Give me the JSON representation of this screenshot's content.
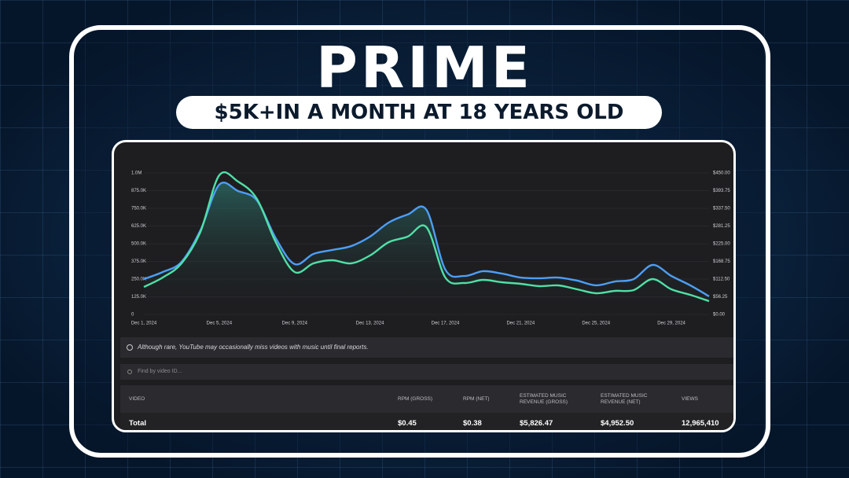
{
  "header": {
    "title": "PRIME",
    "subtitle": "$5K+IN A MONTH AT 18 YEARS OLD"
  },
  "chart_data": {
    "type": "line",
    "categories": [
      "Dec 1, 2024",
      null,
      null,
      null,
      "Dec 5, 2024",
      null,
      null,
      null,
      "Dec 9, 2024",
      null,
      null,
      null,
      "Dec 13, 2024",
      null,
      null,
      null,
      "Dec 17, 2024",
      null,
      null,
      null,
      "Dec 21, 2024",
      null,
      null,
      null,
      "Dec 25, 2024",
      null,
      null,
      null,
      "Dec 29, 2024",
      null,
      null
    ],
    "series": [
      {
        "color": "#4d9ef5",
        "values": [
          250000,
          300000,
          372000,
          594000,
          917000,
          872000,
          806000,
          539000,
          356000,
          428000,
          456000,
          483000,
          550000,
          650000,
          706000,
          739000,
          317000,
          272000,
          306000,
          289000,
          261000,
          256000,
          261000,
          239000,
          206000,
          233000,
          250000,
          350000,
          272000,
          206000,
          128000
        ]
      },
      {
        "color": "#4fe0a6",
        "axis": "y2",
        "values": [
          87.5,
          117.5,
          162.5,
          262.5,
          442.5,
          422.5,
          367.5,
          230,
          135,
          162.5,
          172.5,
          162.5,
          187.5,
          230,
          247.5,
          277.5,
          117.5,
          100,
          110,
          102.5,
          97.5,
          90,
          92.5,
          80,
          67.5,
          75,
          77.5,
          112.5,
          80,
          62.5,
          42.5
        ]
      }
    ],
    "ylim": [
      0,
      1000000
    ],
    "yticks": [
      0,
      {
        "value": 125000,
        "label": "125.0K"
      },
      {
        "value": 250000,
        "label": "250.0K"
      },
      {
        "value": 375000,
        "label": "375.0K"
      },
      {
        "value": 500000,
        "label": "500.0K"
      },
      {
        "value": 625000,
        "label": "625.0K"
      },
      {
        "value": 750000,
        "label": "750.0K"
      },
      {
        "value": 875000,
        "label": "875.0K"
      },
      {
        "value": 1000000,
        "label": "1.0M"
      }
    ],
    "y2lim": [
      0,
      450
    ],
    "y2ticks": [
      {
        "value": 0,
        "label": "$0.00"
      },
      {
        "value": 56.25,
        "label": "$56.25"
      },
      {
        "value": 112.5,
        "label": "$112.50"
      },
      {
        "value": 168.75,
        "label": "$168.75"
      },
      {
        "value": 225,
        "label": "$225.00"
      },
      {
        "value": 281.25,
        "label": "$281.25"
      },
      {
        "value": 337.5,
        "label": "$337.50"
      },
      {
        "value": 393.75,
        "label": "$393.75"
      },
      {
        "value": 450,
        "label": "$450.00"
      }
    ],
    "grid": true
  },
  "notice": "Although rare, YouTube may occasionally miss videos with music until final reports.",
  "search_placeholder": "Find by video ID...",
  "table": {
    "columns": [
      "VIDEO",
      "RPM (GROSS)",
      "RPM (NET)",
      "ESTIMATED MUSIC REVENUE (GROSS)",
      "ESTIMATED MUSIC REVENUE (NET)",
      "VIEWS"
    ],
    "rows": [
      [
        "Total",
        "$0.45",
        "$0.38",
        "$5,826.47",
        "$4,952.50",
        "12,965,410"
      ]
    ]
  }
}
